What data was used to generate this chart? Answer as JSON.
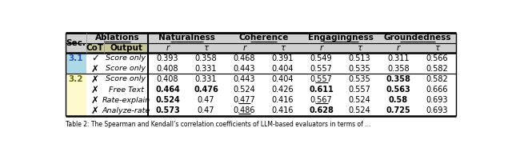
{
  "bg_color": "#ffffff",
  "sec31_bg": "#add8e6",
  "sec32_bg": "#fffacd",
  "cot_header_bg": "#c8c896",
  "header_gray": "#d0d0d0",
  "rows": [
    {
      "sec": "3.1",
      "sec_color": "#3355bb",
      "cot": "✓",
      "output": "Score only",
      "vals": [
        "0.393",
        "0.358",
        "0.468",
        "0.391",
        "0.549",
        "0.513",
        "0.311",
        "0.566"
      ],
      "bold": [
        false,
        false,
        false,
        false,
        false,
        false,
        false,
        false
      ],
      "underline": [
        false,
        false,
        false,
        false,
        false,
        false,
        false,
        false
      ],
      "sec_row": 0,
      "sec_span": 2
    },
    {
      "sec": "",
      "sec_color": "#3355bb",
      "cot": "✗",
      "output": "Score only",
      "vals": [
        "0.408",
        "0.331",
        "0.443",
        "0.404",
        "0.557",
        "0.535",
        "0.358",
        "0.582"
      ],
      "bold": [
        false,
        false,
        false,
        false,
        false,
        false,
        false,
        false
      ],
      "underline": [
        false,
        false,
        false,
        false,
        false,
        false,
        false,
        false
      ],
      "sec_row": -1,
      "sec_span": 0
    },
    {
      "sec": "3.2",
      "sec_color": "#666600",
      "cot": "✗",
      "output": "Score only",
      "vals": [
        "0.408",
        "0.331",
        "0.443",
        "0.404",
        "0.557",
        "0.535",
        "0.358",
        "0.582"
      ],
      "bold": [
        false,
        false,
        false,
        false,
        false,
        false,
        true,
        false
      ],
      "underline": [
        false,
        false,
        false,
        false,
        true,
        false,
        false,
        false
      ],
      "sec_row": 0,
      "sec_span": 4
    },
    {
      "sec": "",
      "sec_color": "#666600",
      "cot": "✗",
      "output": "Free Text",
      "vals": [
        "0.464",
        "0.476",
        "0.524",
        "0.426",
        "0.611",
        "0.557",
        "0.563",
        "0.666"
      ],
      "bold": [
        true,
        true,
        false,
        false,
        true,
        false,
        true,
        false
      ],
      "underline": [
        false,
        false,
        false,
        false,
        false,
        false,
        false,
        false
      ],
      "sec_row": -1,
      "sec_span": 0
    },
    {
      "sec": "",
      "sec_color": "#666600",
      "cot": "✗",
      "output": "Rate-explain",
      "vals": [
        "0.524",
        "0.47",
        "0.477",
        "0.416",
        "0.567",
        "0.524",
        "0.58",
        "0.693"
      ],
      "bold": [
        true,
        false,
        false,
        false,
        false,
        false,
        true,
        false
      ],
      "underline": [
        false,
        false,
        true,
        false,
        true,
        false,
        false,
        false
      ],
      "sec_row": -1,
      "sec_span": 0
    },
    {
      "sec": "",
      "sec_color": "#666600",
      "cot": "✗",
      "output": "Analyze-rate",
      "vals": [
        "0.573",
        "0.47",
        "0.486",
        "0.416",
        "0.628",
        "0.524",
        "0.725",
        "0.693"
      ],
      "bold": [
        true,
        false,
        false,
        false,
        true,
        false,
        true,
        false
      ],
      "underline": [
        false,
        false,
        true,
        false,
        false,
        false,
        false,
        false
      ],
      "sec_row": -1,
      "sec_span": 0
    }
  ],
  "footer": "Table 2: The Spearman and Kendall’s correlation coefficients of LLM-based evaluators in terms of ..."
}
